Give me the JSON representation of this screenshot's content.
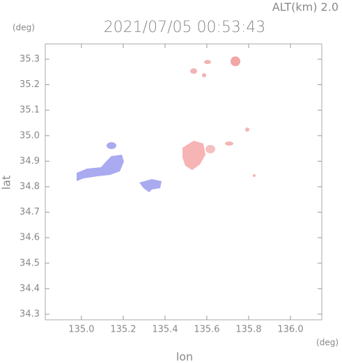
{
  "chart_data": {
    "type": "map",
    "title": "2021/07/05 00:53:43",
    "subtitle": "ALT(km)  2.0",
    "x_label": "lon",
    "y_label": "lat",
    "x_unit": "(deg)",
    "y_unit": "(deg)",
    "xlim": [
      134.827,
      136.15
    ],
    "ylim": [
      34.278,
      35.36
    ],
    "xticks": [
      {
        "value": 135,
        "label": "135.0"
      },
      135.2,
      135.4,
      135.6,
      135.8,
      {
        "value": 136,
        "label": "136.0"
      }
    ],
    "yticks": [
      34.3,
      34.4,
      34.5,
      34.6,
      34.7,
      34.8,
      34.9,
      {
        "value": 35,
        "label": "35.0"
      },
      35.1,
      35.2,
      35.3
    ]
  }
}
